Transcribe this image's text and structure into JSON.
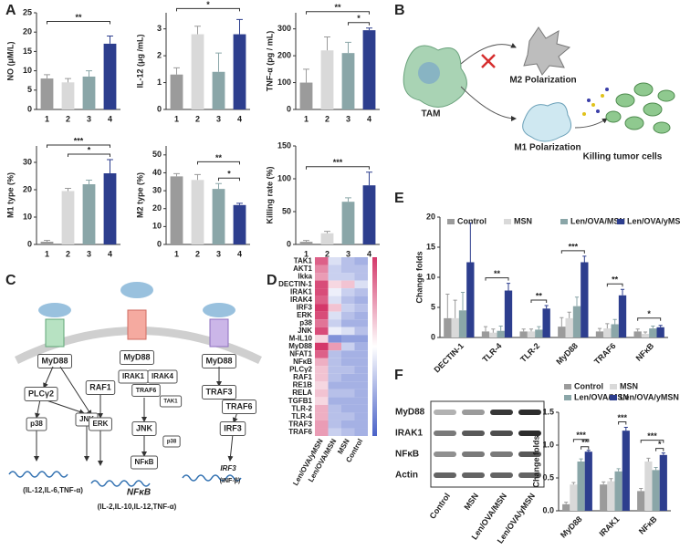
{
  "panel_labels": [
    "A",
    "B",
    "C",
    "D",
    "E",
    "F"
  ],
  "panel_a": [
    {
      "type": "bar",
      "ylabel": "NO (μM/L)",
      "categories": [
        "1",
        "2",
        "3",
        "4"
      ],
      "values": [
        8,
        7,
        8.5,
        17
      ],
      "errors": [
        1,
        1,
        1.5,
        2
      ],
      "colors": [
        "#9b9b9b",
        "#d9d9d9",
        "#8aa6a8",
        "#2d3e8e"
      ],
      "ylim": [
        0,
        25
      ],
      "yticks": [
        0,
        5,
        10,
        15,
        20,
        25
      ],
      "annotations": [
        "**"
      ]
    },
    {
      "type": "bar",
      "ylabel": "IL-12 (μg /mL)",
      "categories": [
        "1",
        "2",
        "3",
        "4"
      ],
      "values": [
        1.3,
        2.8,
        1.4,
        2.8
      ],
      "errors": [
        0.25,
        0.3,
        0.7,
        0.55
      ],
      "colors": [
        "#9b9b9b",
        "#d9d9d9",
        "#8aa6a8",
        "#2d3e8e"
      ],
      "ylim": [
        0,
        3.6
      ],
      "yticks": [
        0,
        1,
        2,
        3
      ],
      "annotations": [
        "*"
      ]
    },
    {
      "type": "bar",
      "ylabel": "TNF-α (pg / mL)",
      "categories": [
        "1",
        "2",
        "3",
        "4"
      ],
      "values": [
        100,
        220,
        210,
        295
      ],
      "errors": [
        50,
        50,
        40,
        8
      ],
      "colors": [
        "#9b9b9b",
        "#d9d9d9",
        "#8aa6a8",
        "#2d3e8e"
      ],
      "ylim": [
        0,
        360
      ],
      "yticks": [
        0,
        100,
        200,
        300
      ],
      "annotations": [
        "**",
        "*"
      ]
    },
    {
      "type": "bar",
      "ylabel": "M1 type (%)",
      "categories": [
        "1",
        "2",
        "3",
        "4"
      ],
      "values": [
        1,
        19.5,
        22,
        26
      ],
      "errors": [
        0.5,
        1,
        1.5,
        5
      ],
      "colors": [
        "#9b9b9b",
        "#d9d9d9",
        "#8aa6a8",
        "#2d3e8e"
      ],
      "ylim": [
        0,
        36
      ],
      "yticks": [
        0,
        10,
        20,
        30
      ],
      "annotations": [
        "***",
        "*"
      ]
    },
    {
      "type": "bar",
      "ylabel": "M2 type (%)",
      "categories": [
        "1",
        "2",
        "3",
        "4"
      ],
      "values": [
        38,
        36,
        31,
        22
      ],
      "errors": [
        1.5,
        3,
        3,
        1
      ],
      "colors": [
        "#9b9b9b",
        "#d9d9d9",
        "#8aa6a8",
        "#2d3e8e"
      ],
      "ylim": [
        0,
        55
      ],
      "yticks": [
        0,
        10,
        20,
        30,
        40,
        50
      ],
      "annotations": [
        "**",
        "*"
      ]
    },
    {
      "type": "bar",
      "ylabel": "Killing rate (%)",
      "categories": [
        "1",
        "2",
        "3",
        "4"
      ],
      "values": [
        4,
        17,
        65,
        90
      ],
      "errors": [
        2,
        3,
        6,
        20
      ],
      "colors": [
        "#9b9b9b",
        "#d9d9d9",
        "#8aa6a8",
        "#2d3e8e"
      ],
      "ylim": [
        0,
        150
      ],
      "yticks": [
        0,
        50,
        100,
        150
      ],
      "annotations": [
        "***"
      ]
    }
  ],
  "panel_b": {
    "tam": "TAM",
    "m2": "M2 Polarization",
    "m1": "M1 Polarization",
    "killing": "Killing tumor cells"
  },
  "panel_c": {
    "receptors": [
      "MyD88",
      "MyD88",
      "MyD88"
    ],
    "nodes": [
      "PLCγ2",
      "p38",
      "JNK",
      "RAF1",
      "ERK",
      "IRAK1",
      "IRAK4",
      "TRAF6",
      "TAK1",
      "JNK",
      "p38",
      "NFκB",
      "NFκB",
      "TRAF3",
      "TRAF6",
      "IRF3",
      "IRF3"
    ],
    "outputs": [
      "(IL-12,IL-6,TNF-α)",
      "(IL-2,IL-10,IL-12,TNF-α)",
      "(INF-β)"
    ]
  },
  "panel_d": {
    "type": "heatmap",
    "rows": [
      "TAK1",
      "AKT1",
      "Ikka",
      "DECTIN-1",
      "IRAK1",
      "IRAK4",
      "IRF3",
      "ERK",
      "p38",
      "JNK",
      "M-IL10",
      "MyD88",
      "NFAT1",
      "NFκB",
      "PLCγ2",
      "RAF1",
      "RE1B",
      "RELA",
      "TGFB1",
      "TLR-2",
      "TLR-4",
      "TRAF3",
      "TRAF6"
    ],
    "columns": [
      "Len/OVA/yMSN",
      "Len/OVA/MSN",
      "MSN",
      "Control"
    ],
    "zlim": [
      -1,
      1
    ],
    "values": [
      [
        0.8,
        -0.2,
        -0.4,
        -0.5
      ],
      [
        0.6,
        -0.3,
        -0.4,
        -0.4
      ],
      [
        0.5,
        -0.3,
        -0.3,
        -0.4
      ],
      [
        0.9,
        0.2,
        0.3,
        -0.2
      ],
      [
        0.9,
        -0.1,
        -0.3,
        -0.4
      ],
      [
        0.8,
        -0.2,
        -0.4,
        -0.5
      ],
      [
        1,
        0.3,
        -0.3,
        -0.4
      ],
      [
        0.9,
        -0.2,
        -0.4,
        -0.5
      ],
      [
        0.7,
        -0.3,
        -0.5,
        -0.5
      ],
      [
        0.9,
        -0.1,
        -0.2,
        -0.4
      ],
      [
        0.2,
        -0.7,
        -0.6,
        -0.6
      ],
      [
        1,
        0.5,
        -0.3,
        -0.5
      ],
      [
        0.8,
        -0.4,
        -0.5,
        -0.5
      ],
      [
        0.4,
        -0.4,
        -0.5,
        -0.5
      ],
      [
        0.3,
        -0.4,
        -0.4,
        -0.5
      ],
      [
        0.3,
        -0.4,
        -0.5,
        -0.5
      ],
      [
        0.2,
        -0.5,
        -0.5,
        -0.5
      ],
      [
        0.3,
        -0.4,
        -0.4,
        -0.5
      ],
      [
        0.2,
        -0.5,
        -0.5,
        -0.5
      ],
      [
        0.4,
        -0.4,
        -0.5,
        -0.5
      ],
      [
        0.4,
        -0.4,
        -0.4,
        -0.5
      ],
      [
        0.5,
        -0.4,
        -0.5,
        -0.5
      ],
      [
        0.5,
        -0.3,
        -0.4,
        -0.5
      ]
    ]
  },
  "panel_e": {
    "type": "bar",
    "ylabel": "Change folds",
    "categories": [
      "DECTIN-1",
      "TLR-4",
      "TLR-2",
      "MyD88",
      "TRAF6",
      "NFκB"
    ],
    "ylim": [
      0,
      20
    ],
    "yticks": [
      0,
      5,
      10,
      15,
      20
    ],
    "series": [
      {
        "name": "Control",
        "color": "#9b9b9b",
        "values": [
          3.2,
          1,
          1,
          1.8,
          1,
          1
        ],
        "errors": [
          4,
          0.8,
          0.4,
          1.5,
          0.5,
          0.4
        ]
      },
      {
        "name": "MSN",
        "color": "#d9d9d9",
        "values": [
          3.2,
          0.8,
          1,
          3.2,
          1.5,
          0.6
        ],
        "errors": [
          3,
          0.6,
          0.4,
          1,
          0.8,
          0.3
        ]
      },
      {
        "name": "Len/OVA/MSN",
        "color": "#8aa6a8",
        "values": [
          4.5,
          1.1,
          1.3,
          5.2,
          2.2,
          1.5
        ],
        "errors": [
          3,
          0.8,
          0.5,
          1.5,
          0.8,
          0.4
        ]
      },
      {
        "name": "Len/OVA/yMSN",
        "color": "#2d3e8e",
        "values": [
          12.5,
          7.8,
          4.8,
          12.5,
          7,
          1.7
        ],
        "errors": [
          6.5,
          1.2,
          0.5,
          1,
          1,
          0.3
        ]
      }
    ],
    "annotations": [
      "**",
      "**",
      "***",
      "**",
      "*"
    ]
  },
  "panel_f": {
    "blot": {
      "rows": [
        "MyD88",
        "IRAK1",
        "NFκB",
        "Actin"
      ],
      "lanes": [
        "Control",
        "MSN",
        "Len/OVA/MSN",
        "Len/OVA/yMSN"
      ]
    },
    "chart": {
      "type": "bar",
      "ylabel": "Change folds",
      "categories": [
        "MyD88",
        "IRAK1",
        "NFκB"
      ],
      "ylim": [
        0,
        1.5
      ],
      "yticks": [
        {
          "value": 0,
          "label": "0.0"
        },
        0.5,
        {
          "value": 1,
          "label": "1.0"
        },
        1.5
      ],
      "series": [
        {
          "name": "Control",
          "color": "#9b9b9b",
          "values": [
            0.1,
            0.4,
            0.3
          ],
          "errors": [
            0.03,
            0.04,
            0.04
          ]
        },
        {
          "name": "MSN",
          "color": "#d9d9d9",
          "values": [
            0.4,
            0.45,
            0.75
          ],
          "errors": [
            0.03,
            0.04,
            0.05
          ]
        },
        {
          "name": "Len/OVA/MSN",
          "color": "#8aa6a8",
          "values": [
            0.75,
            0.6,
            0.62
          ],
          "errors": [
            0.04,
            0.04,
            0.04
          ]
        },
        {
          "name": "Len/OVA/yMSN",
          "color": "#2d3e8e",
          "values": [
            0.9,
            1.22,
            0.85
          ],
          "errors": [
            0.02,
            0.05,
            0.03
          ]
        }
      ],
      "annotations": [
        "***",
        "**",
        "***",
        "***",
        "*"
      ]
    }
  }
}
